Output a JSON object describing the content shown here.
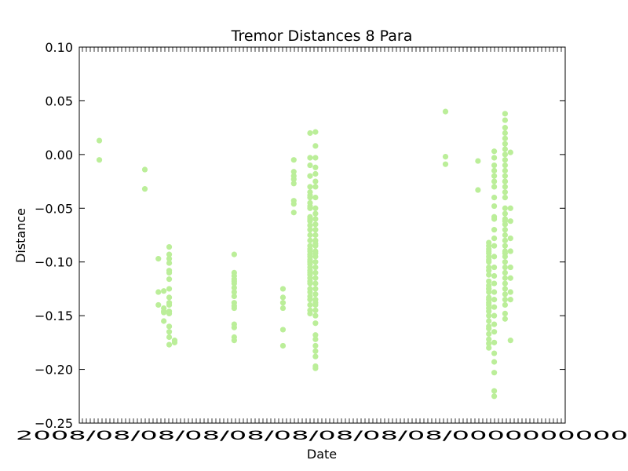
{
  "chart_data": {
    "type": "scatter",
    "title": "Tremor Distances 8 Para",
    "xlabel": "Date",
    "ylabel": "Distance",
    "ylim": [
      -0.25,
      0.1
    ],
    "y_ticks": [
      "0.10",
      "0.05",
      "0.00",
      "−0.05",
      "−0.10",
      "−0.15",
      "−0.20",
      "−0.25"
    ],
    "x_tick_label_text": "2008/08/08/08/08/08/08/08/08/0000000000",
    "x_tick_labels_overlapping": true,
    "x_axis_range_note": "tick labels overlap and are unreadable",
    "grid": false,
    "legend": "none",
    "marker_color": "#bbee99",
    "series": [
      {
        "x": [
          -0.9,
          -0.9,
          7.5,
          7.5,
          10,
          10,
          10,
          11,
          11,
          11,
          11,
          11,
          12,
          12,
          12,
          12,
          12,
          12,
          12,
          12,
          12,
          12,
          12,
          12,
          12,
          12,
          12,
          12,
          12,
          13,
          13,
          24,
          24,
          24,
          24,
          24,
          24,
          24,
          24,
          24,
          24,
          24,
          24,
          24,
          24,
          24,
          24,
          33,
          33,
          33,
          33,
          33,
          33,
          35,
          35,
          35,
          35,
          35,
          35,
          35,
          35,
          38,
          38,
          38,
          38,
          38,
          38,
          38,
          38,
          38,
          38,
          38,
          38,
          38,
          38,
          38,
          38,
          38,
          38,
          38,
          38,
          38,
          38,
          38,
          38,
          38,
          38,
          38,
          38,
          38,
          38,
          38,
          38,
          38,
          38,
          38,
          38,
          38,
          38,
          38,
          38,
          39,
          39,
          39,
          39,
          39,
          39,
          39,
          39,
          39,
          39,
          39,
          39,
          39,
          39,
          39,
          39,
          39,
          39,
          39,
          39,
          39,
          39,
          39,
          39,
          39,
          39,
          39,
          39,
          39,
          39,
          39,
          39,
          39,
          39,
          39,
          39,
          39,
          39,
          39,
          39,
          63,
          63,
          63,
          69,
          69,
          71,
          71,
          71,
          71,
          71,
          71,
          71,
          71,
          71,
          71,
          71,
          71,
          71,
          71,
          71,
          71,
          71,
          71,
          71,
          71,
          71,
          71,
          71,
          71,
          71,
          71,
          71,
          71,
          71,
          71,
          72,
          72,
          72,
          72,
          72,
          72,
          72,
          72,
          72,
          72,
          72,
          72,
          72,
          72,
          72,
          72,
          72,
          72,
          72,
          72,
          72,
          72,
          72,
          72,
          72,
          72,
          72,
          72,
          72,
          72,
          74,
          74,
          74,
          74,
          74,
          74,
          74,
          74,
          74,
          74,
          74,
          74,
          74,
          74,
          74,
          74,
          74,
          74,
          74,
          74,
          74,
          74,
          74,
          74,
          74,
          74,
          74,
          74,
          74,
          74,
          74,
          74,
          74,
          74,
          74,
          74,
          74,
          74,
          74,
          74,
          75,
          75,
          75,
          75,
          75,
          75,
          75,
          75,
          75,
          75
        ],
        "y": [
          0.013,
          -0.005,
          -0.014,
          -0.032,
          -0.097,
          -0.128,
          -0.14,
          -0.127,
          -0.143,
          -0.146,
          -0.155,
          -0.147,
          -0.086,
          -0.093,
          -0.097,
          -0.101,
          -0.108,
          -0.116,
          -0.133,
          -0.14,
          -0.146,
          -0.16,
          -0.165,
          -0.17,
          -0.177,
          -0.11,
          -0.125,
          -0.138,
          -0.148,
          -0.175,
          -0.173,
          -0.093,
          -0.11,
          -0.113,
          -0.116,
          -0.12,
          -0.124,
          -0.128,
          -0.132,
          -0.138,
          -0.141,
          -0.143,
          -0.158,
          -0.161,
          -0.17,
          -0.173,
          -0.118,
          -0.125,
          -0.133,
          -0.138,
          -0.143,
          -0.163,
          -0.178,
          -0.005,
          -0.016,
          -0.02,
          -0.023,
          -0.027,
          -0.043,
          -0.046,
          -0.054,
          0.02,
          -0.003,
          -0.01,
          -0.02,
          -0.03,
          -0.04,
          -0.045,
          -0.05,
          -0.06,
          -0.07,
          -0.08,
          -0.085,
          -0.09,
          -0.095,
          -0.1,
          -0.105,
          -0.11,
          -0.115,
          -0.12,
          -0.125,
          -0.128,
          -0.132,
          -0.135,
          -0.14,
          -0.145,
          -0.148,
          -0.035,
          -0.058,
          -0.075,
          -0.098,
          -0.112,
          -0.118,
          -0.062,
          -0.066,
          -0.088,
          -0.093,
          -0.102,
          -0.108,
          -0.038,
          -0.048,
          0.021,
          0.008,
          -0.003,
          -0.012,
          -0.018,
          -0.025,
          -0.03,
          -0.04,
          -0.05,
          -0.06,
          -0.07,
          -0.08,
          -0.085,
          -0.09,
          -0.095,
          -0.1,
          -0.105,
          -0.11,
          -0.115,
          -0.12,
          -0.125,
          -0.13,
          -0.135,
          -0.14,
          -0.145,
          -0.15,
          -0.157,
          -0.168,
          -0.172,
          -0.178,
          -0.183,
          -0.188,
          -0.197,
          -0.199,
          -0.055,
          -0.065,
          -0.075,
          -0.083,
          -0.092,
          -0.138,
          0.04,
          -0.002,
          -0.009,
          -0.006,
          -0.033,
          -0.125,
          -0.133,
          -0.135,
          -0.138,
          -0.14,
          -0.143,
          -0.146,
          -0.15,
          -0.155,
          -0.16,
          -0.085,
          -0.09,
          -0.095,
          -0.1,
          -0.108,
          -0.112,
          -0.118,
          -0.122,
          -0.128,
          -0.162,
          -0.167,
          -0.172,
          -0.176,
          -0.18,
          -0.125,
          -0.105,
          -0.098,
          -0.092,
          -0.088,
          -0.082,
          0.003,
          -0.003,
          -0.01,
          -0.015,
          -0.02,
          -0.025,
          -0.03,
          -0.04,
          -0.048,
          -0.058,
          -0.06,
          -0.07,
          -0.078,
          -0.085,
          -0.095,
          -0.105,
          -0.113,
          -0.12,
          -0.128,
          -0.135,
          -0.142,
          -0.15,
          -0.158,
          -0.165,
          -0.175,
          -0.185,
          -0.193,
          -0.203,
          -0.22,
          -0.225,
          0.038,
          0.032,
          0.025,
          0.02,
          0.015,
          0.01,
          0.005,
          0.0,
          -0.005,
          -0.01,
          -0.015,
          -0.02,
          -0.025,
          -0.03,
          -0.035,
          -0.05,
          -0.055,
          -0.06,
          -0.065,
          -0.07,
          -0.075,
          -0.08,
          -0.085,
          -0.09,
          -0.095,
          -0.1,
          -0.105,
          -0.11,
          -0.115,
          -0.12,
          -0.125,
          -0.13,
          -0.135,
          -0.14,
          -0.148,
          -0.153,
          -0.04,
          -0.025,
          -0.062,
          -0.092,
          -0.173,
          0.002,
          -0.128,
          -0.135,
          -0.105,
          -0.078,
          -0.05,
          -0.062,
          -0.09,
          -0.115
        ]
      }
    ]
  }
}
